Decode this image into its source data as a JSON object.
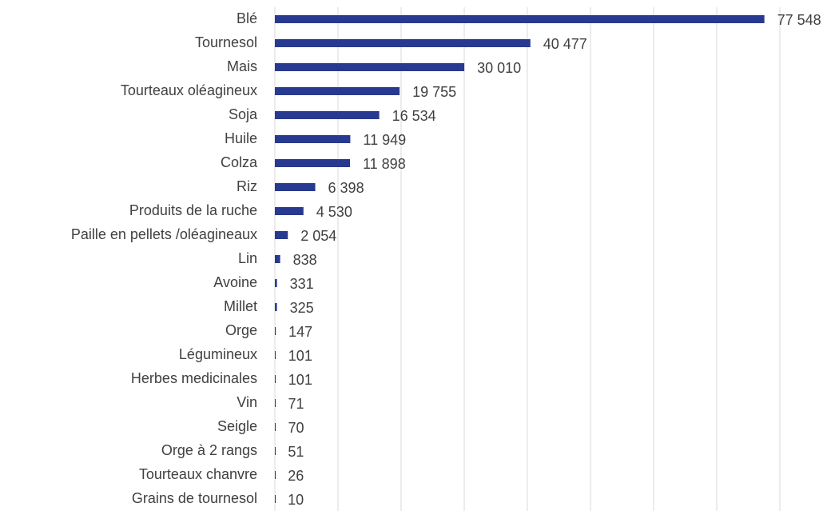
{
  "chart_data": {
    "type": "bar",
    "orientation": "horizontal",
    "categories": [
      "Blé",
      "Tournesol",
      "Mais",
      "Tourteaux oléagineux",
      "Soja",
      "Huile",
      "Colza",
      "Riz",
      "Produits de la ruche",
      "Paille en pellets /oléagineaux",
      "Lin",
      "Avoine",
      "Millet",
      "Orge",
      "Légumineux",
      "Herbes medicinales",
      "Vin",
      "Seigle",
      "Orge à 2 rangs",
      "Tourteaux chanvre",
      "Grains de tournesol"
    ],
    "values": [
      77548,
      40477,
      30010,
      19755,
      16534,
      11949,
      11898,
      6398,
      4530,
      2054,
      838,
      331,
      325,
      147,
      101,
      101,
      71,
      70,
      51,
      26,
      10
    ],
    "value_labels": [
      "77 548",
      "40 477",
      "30 010",
      "19 755",
      "16 534",
      "11 949",
      "11 898",
      "6 398",
      "4 530",
      "2 054",
      "838",
      "331",
      "325",
      "147",
      "101",
      "101",
      "71",
      "70",
      "51",
      "26",
      "10"
    ],
    "color": "#283a8f",
    "xlim": [
      0,
      80000
    ],
    "xticks": [
      0,
      10000,
      20000,
      30000,
      40000,
      50000,
      60000,
      70000,
      80000
    ],
    "grid": true
  }
}
